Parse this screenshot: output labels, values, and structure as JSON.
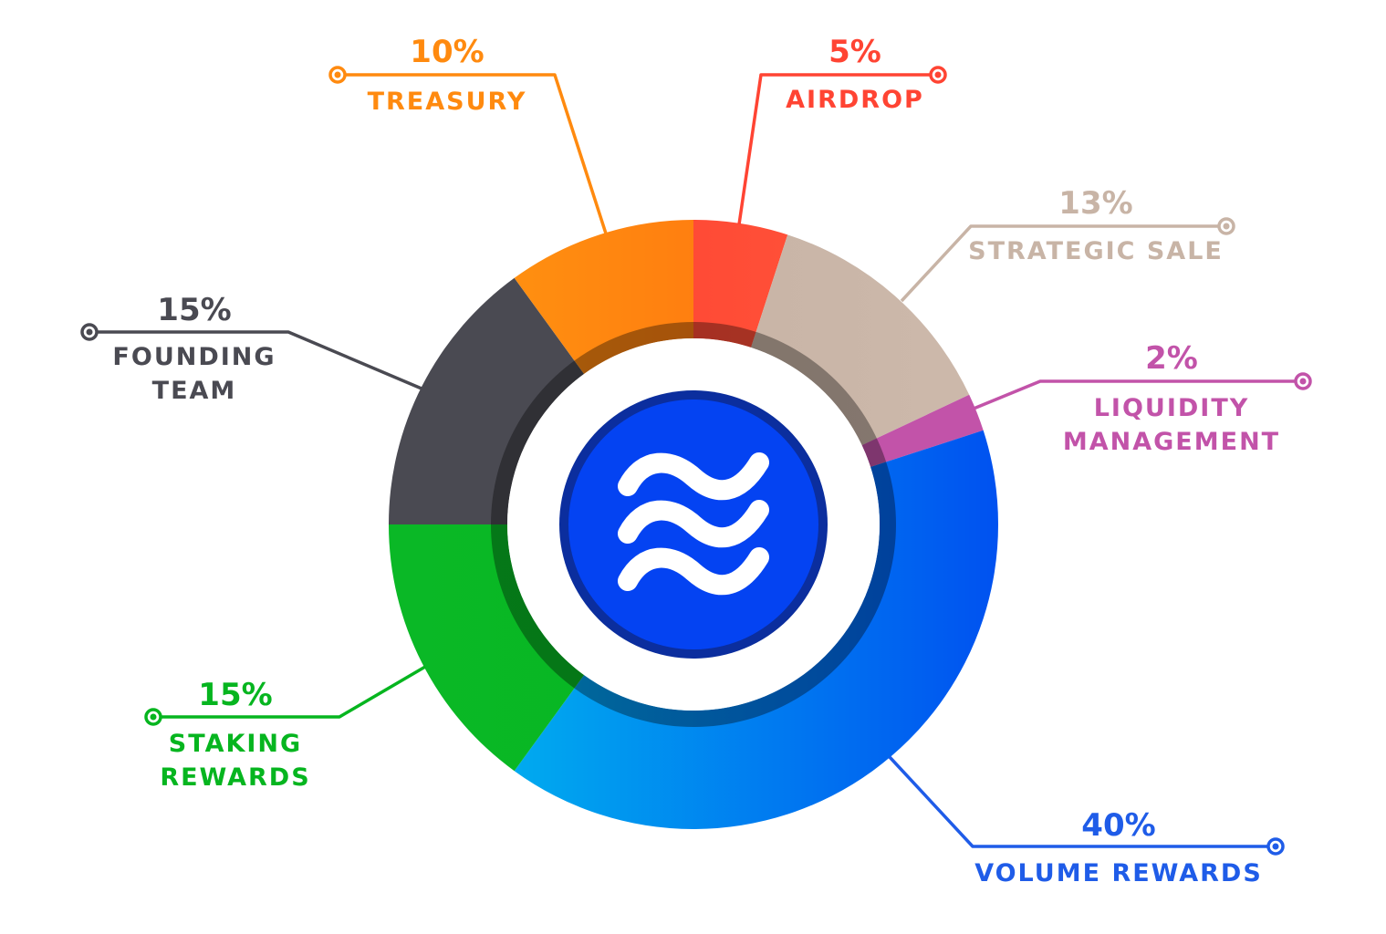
{
  "chart_data": {
    "type": "pie",
    "variant": "donut",
    "start_angle_deg": 0,
    "direction": "clockwise",
    "slices": [
      {
        "label_lines": [
          "AIRDROP"
        ],
        "value": 5,
        "value_label": "5%",
        "color": "#FF4433",
        "gradient": [
          "#FF5A3C",
          "#FF3B2F"
        ]
      },
      {
        "label_lines": [
          "STRATEGIC SALE"
        ],
        "value": 13,
        "value_label": "13%",
        "color": "#C8B4A6",
        "gradient": [
          "#CDB9AB",
          "#C2AEA0"
        ]
      },
      {
        "label_lines": [
          "LIQUIDITY",
          "MANAGEMENT"
        ],
        "value": 2,
        "value_label": "2%",
        "color": "#C253A9",
        "gradient": [
          "#C253A9",
          "#C253A9"
        ]
      },
      {
        "label_lines": [
          "VOLUME REWARDS"
        ],
        "value": 40,
        "value_label": "40%",
        "color": "#1F5CE8",
        "gradient": [
          "#0052F0",
          "#00AEEF"
        ]
      },
      {
        "label_lines": [
          "STAKING",
          "REWARDS"
        ],
        "value": 15,
        "value_label": "15%",
        "color": "#06B51F",
        "gradient": [
          "#05B51E",
          "#0AB826"
        ]
      },
      {
        "label_lines": [
          "FOUNDING",
          "TEAM"
        ],
        "value": 15,
        "value_label": "15%",
        "color": "#4A4A52",
        "gradient": [
          "#4A4A52",
          "#4A4A52"
        ]
      },
      {
        "label_lines": [
          "TREASURY"
        ],
        "value": 10,
        "value_label": "10%",
        "color": "#FF8A0F",
        "gradient": [
          "#FF6410",
          "#FF9A10"
        ]
      }
    ]
  },
  "colors": {
    "logo_outer": "#0B2E9E",
    "logo_inner": "#0443F2",
    "logo_waves": "#FFFFFF",
    "inner_shadow": "rgba(0,0,0,0.35)"
  },
  "icons": {
    "center_logo": "wave-logo-icon"
  }
}
